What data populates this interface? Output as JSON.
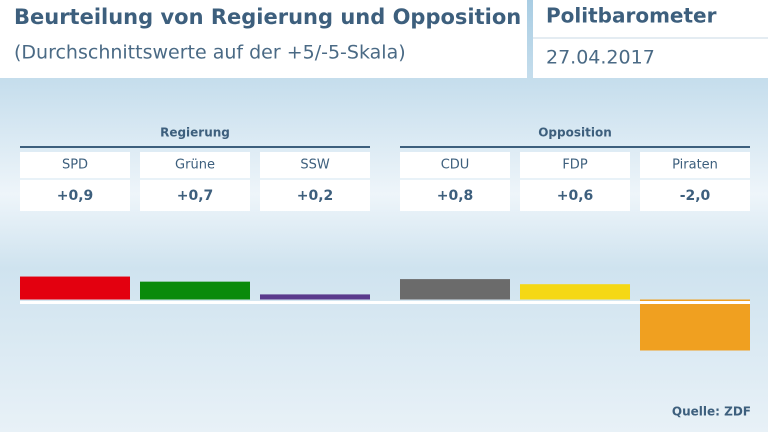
{
  "chart_data": {
    "type": "bar",
    "title": "Beurteilung von Regierung und Opposition",
    "subtitle": "(Durchschnittswerte auf der +5/-5-Skala)",
    "brand": "Politbarometer",
    "date": "27.04.2017",
    "source": "Quelle: ZDF",
    "ylim": [
      -2.4,
      1.0
    ],
    "groups": [
      {
        "name": "Regierung",
        "categories": [
          "SPD",
          "Grüne",
          "SSW"
        ],
        "values": [
          0.9,
          0.7,
          0.2
        ],
        "value_labels": [
          "+0,9",
          "+0,7",
          "+0,2"
        ],
        "colors": [
          "#e3000f",
          "#0a8a0a",
          "#5a3a8c"
        ]
      },
      {
        "name": "Opposition",
        "categories": [
          "CDU",
          "FDP",
          "Piraten"
        ],
        "values": [
          0.8,
          0.6,
          -2.0
        ],
        "value_labels": [
          "+0,8",
          "+0,6",
          "-2,0"
        ],
        "colors": [
          "#6b6b6b",
          "#f5d815",
          "#f0a020"
        ]
      }
    ]
  }
}
